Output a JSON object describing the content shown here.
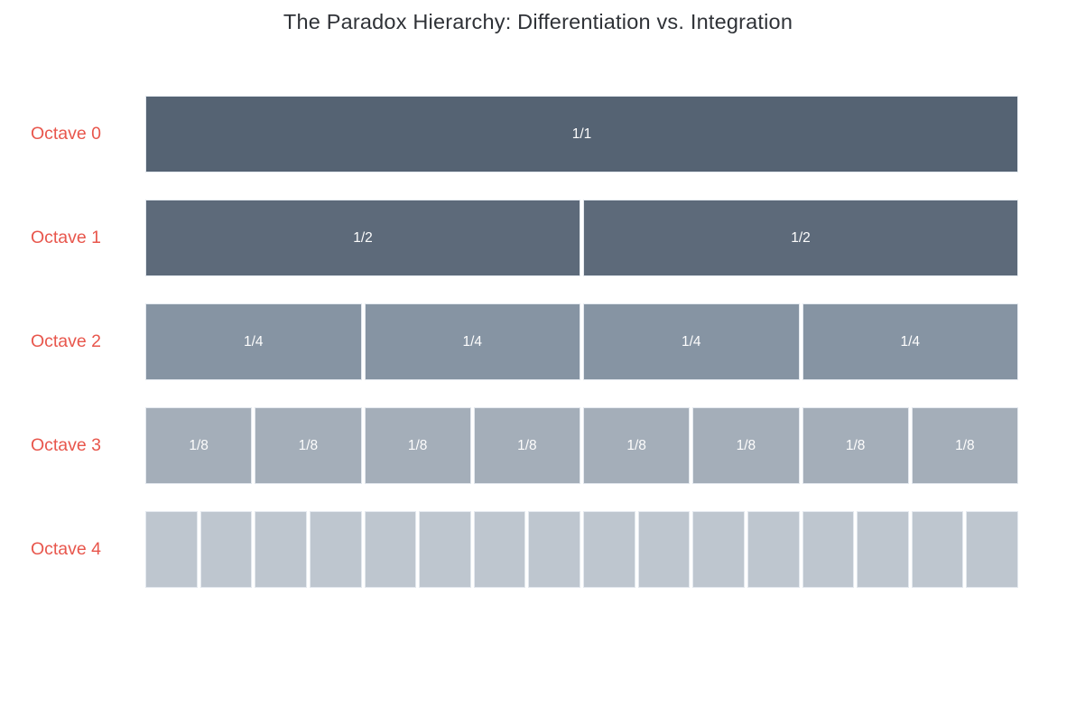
{
  "title": "The Paradox Hierarchy: Differentiation vs. Integration",
  "chart_data": {
    "type": "bar",
    "variant": "icicle-partition",
    "title": "The Paradox Hierarchy: Differentiation vs. Integration",
    "layout": {
      "legend": false,
      "grid": false,
      "background": "#ffffff",
      "title_color": "#2f3237",
      "label_color": "#e8564c",
      "segment_text_color": "#fdfdfd",
      "segment_gap_color": "#ffffff"
    },
    "rows": [
      {
        "label": "Octave 0",
        "color": "#556373",
        "segments": [
          {
            "label": "1/1",
            "value": 1
          }
        ]
      },
      {
        "label": "Octave 1",
        "color": "#5d6a7a",
        "segments": [
          {
            "label": "1/2",
            "value": 0.5
          },
          {
            "label": "1/2",
            "value": 0.5
          }
        ]
      },
      {
        "label": "Octave 2",
        "color": "#8694a3",
        "segments": [
          {
            "label": "1/4",
            "value": 0.25
          },
          {
            "label": "1/4",
            "value": 0.25
          },
          {
            "label": "1/4",
            "value": 0.25
          },
          {
            "label": "1/4",
            "value": 0.25
          }
        ]
      },
      {
        "label": "Octave 3",
        "color": "#a4aeb9",
        "segments": [
          {
            "label": "1/8",
            "value": 0.125
          },
          {
            "label": "1/8",
            "value": 0.125
          },
          {
            "label": "1/8",
            "value": 0.125
          },
          {
            "label": "1/8",
            "value": 0.125
          },
          {
            "label": "1/8",
            "value": 0.125
          },
          {
            "label": "1/8",
            "value": 0.125
          },
          {
            "label": "1/8",
            "value": 0.125
          },
          {
            "label": "1/8",
            "value": 0.125
          }
        ]
      },
      {
        "label": "Octave 4",
        "color": "#bec6cf",
        "segments": [
          {
            "label": "",
            "value": 0.0625
          },
          {
            "label": "",
            "value": 0.0625
          },
          {
            "label": "",
            "value": 0.0625
          },
          {
            "label": "",
            "value": 0.0625
          },
          {
            "label": "",
            "value": 0.0625
          },
          {
            "label": "",
            "value": 0.0625
          },
          {
            "label": "",
            "value": 0.0625
          },
          {
            "label": "",
            "value": 0.0625
          },
          {
            "label": "",
            "value": 0.0625
          },
          {
            "label": "",
            "value": 0.0625
          },
          {
            "label": "",
            "value": 0.0625
          },
          {
            "label": "",
            "value": 0.0625
          },
          {
            "label": "",
            "value": 0.0625
          },
          {
            "label": "",
            "value": 0.0625
          },
          {
            "label": "",
            "value": 0.0625
          },
          {
            "label": "",
            "value": 0.0625
          }
        ]
      }
    ]
  }
}
